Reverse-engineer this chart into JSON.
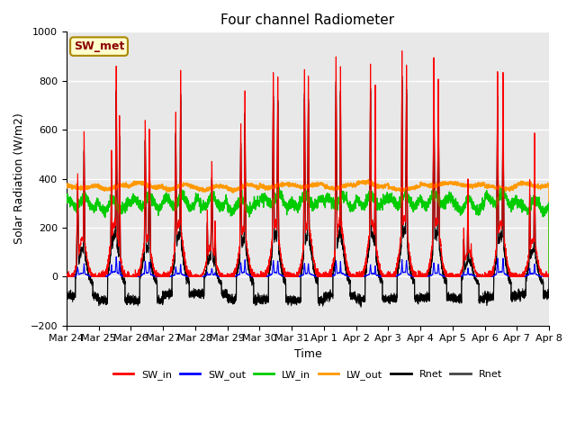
{
  "title": "Four channel Radiometer",
  "xlabel": "Time",
  "ylabel": "Solar Radiation (W/m2)",
  "ylim": [
    -200,
    1000
  ],
  "xlim": [
    0,
    15
  ],
  "x_tick_labels": [
    "Mar 24",
    "Mar 25",
    "Mar 26",
    "Mar 27",
    "Mar 28",
    "Mar 29",
    "Mar 30",
    "Mar 31",
    "Apr 1",
    "Apr 2",
    "Apr 3",
    "Apr 4",
    "Apr 5",
    "Apr 6",
    "Apr 7",
    "Apr 8"
  ],
  "background_color": "#e8e8e8",
  "figure_background": "#ffffff",
  "annotation_text": "SW_met",
  "annotation_box_color": "#ffffcc",
  "annotation_text_color": "#8b0000",
  "legend_entries": [
    "SW_in",
    "SW_out",
    "LW_in",
    "LW_out",
    "Rnet",
    "Rnet"
  ],
  "legend_colors": [
    "#ff0000",
    "#0000ff",
    "#00cc00",
    "#ff9900",
    "#000000",
    "#444444"
  ],
  "grid_color": "#ffffff",
  "yticks": [
    -200,
    0,
    200,
    400,
    600,
    800,
    1000
  ],
  "SW_in_day_peaks": [
    620,
    880,
    660,
    870,
    490,
    750,
    870,
    870,
    900,
    870,
    940,
    890,
    420,
    870,
    600
  ],
  "SW_in_sub_peaks": [
    520,
    650
  ],
  "LW_in_base": 300,
  "LW_out_base": 365,
  "night_rnet": -80
}
